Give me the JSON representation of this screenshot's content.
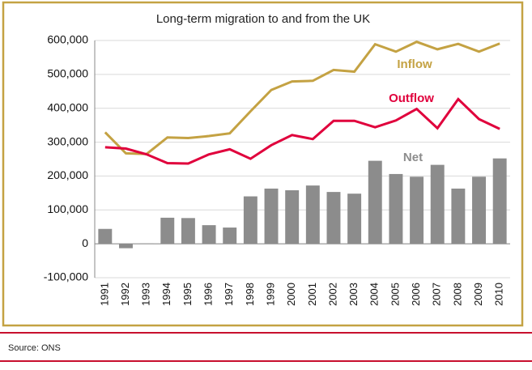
{
  "chart_data": {
    "type": "combo",
    "title": "Long-term migration to and from the UK",
    "categories": [
      "1991",
      "1992",
      "1993",
      "1994",
      "1995",
      "1996",
      "1997",
      "1998",
      "1999",
      "2000",
      "2001",
      "2002",
      "2003",
      "2004",
      "2005",
      "2006",
      "2007",
      "2008",
      "2009",
      "2010"
    ],
    "series": [
      {
        "name": "Net",
        "type": "bar",
        "color": "#8c8c8c",
        "values": [
          44000,
          -13000,
          1000,
          77000,
          76000,
          55000,
          48000,
          140000,
          163000,
          158000,
          172000,
          153000,
          148000,
          245000,
          206000,
          198000,
          233000,
          163000,
          198000,
          252000
        ]
      },
      {
        "name": "Inflow",
        "type": "line",
        "color": "#c4a243",
        "values": [
          329000,
          267000,
          265000,
          314000,
          312000,
          318000,
          326000,
          391000,
          454000,
          479000,
          481000,
          513000,
          508000,
          589000,
          567000,
          596000,
          574000,
          590000,
          567000,
          591000
        ]
      },
      {
        "name": "Outflow",
        "type": "line",
        "color": "#e0003c",
        "values": [
          285000,
          281000,
          264000,
          238000,
          237000,
          264000,
          279000,
          251000,
          291000,
          321000,
          309000,
          363000,
          363000,
          344000,
          364000,
          398000,
          341000,
          427000,
          368000,
          339000
        ]
      }
    ],
    "ylim": [
      -100000,
      600000
    ],
    "yticks": [
      {
        "value": -100000,
        "label": "-100,000"
      },
      0,
      {
        "value": 100000,
        "label": "100,000"
      },
      {
        "value": 200000,
        "label": "200,000"
      },
      {
        "value": 300000,
        "label": "300,000"
      },
      {
        "value": 400000,
        "label": "400,000"
      },
      {
        "value": 500000,
        "label": "500,000"
      },
      {
        "value": 600000,
        "label": "600,000"
      }
    ],
    "grid": true
  },
  "footer": {
    "source": "Source: ONS"
  }
}
